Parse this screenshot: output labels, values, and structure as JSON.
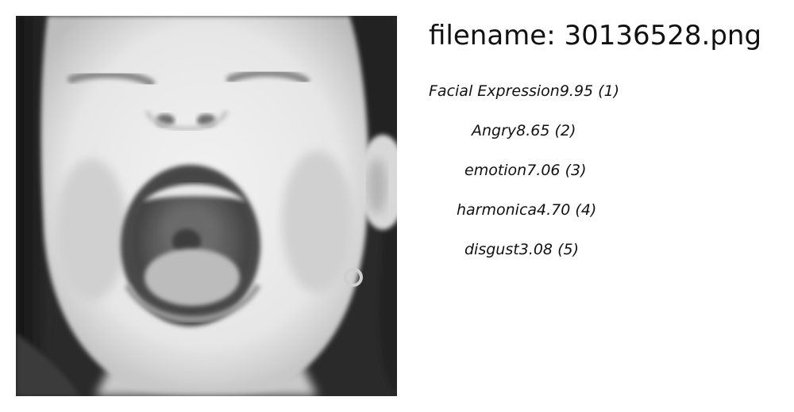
{
  "header": {
    "filename_prefix": "filename:",
    "filename": "30136528.png"
  },
  "image": {
    "subject_icon": "screaming-child-face-photo"
  },
  "predictions": [
    {
      "label": "Facial Expression",
      "score": "9.95",
      "rank": "(1)"
    },
    {
      "label": "Angry",
      "score": "8.65",
      "rank": "(2)"
    },
    {
      "label": "emotion",
      "score": "7.06",
      "rank": "(3)"
    },
    {
      "label": "harmonica",
      "score": "4.70",
      "rank": "(4)"
    },
    {
      "label": "disgust",
      "score": "3.08",
      "rank": "(5)"
    }
  ]
}
